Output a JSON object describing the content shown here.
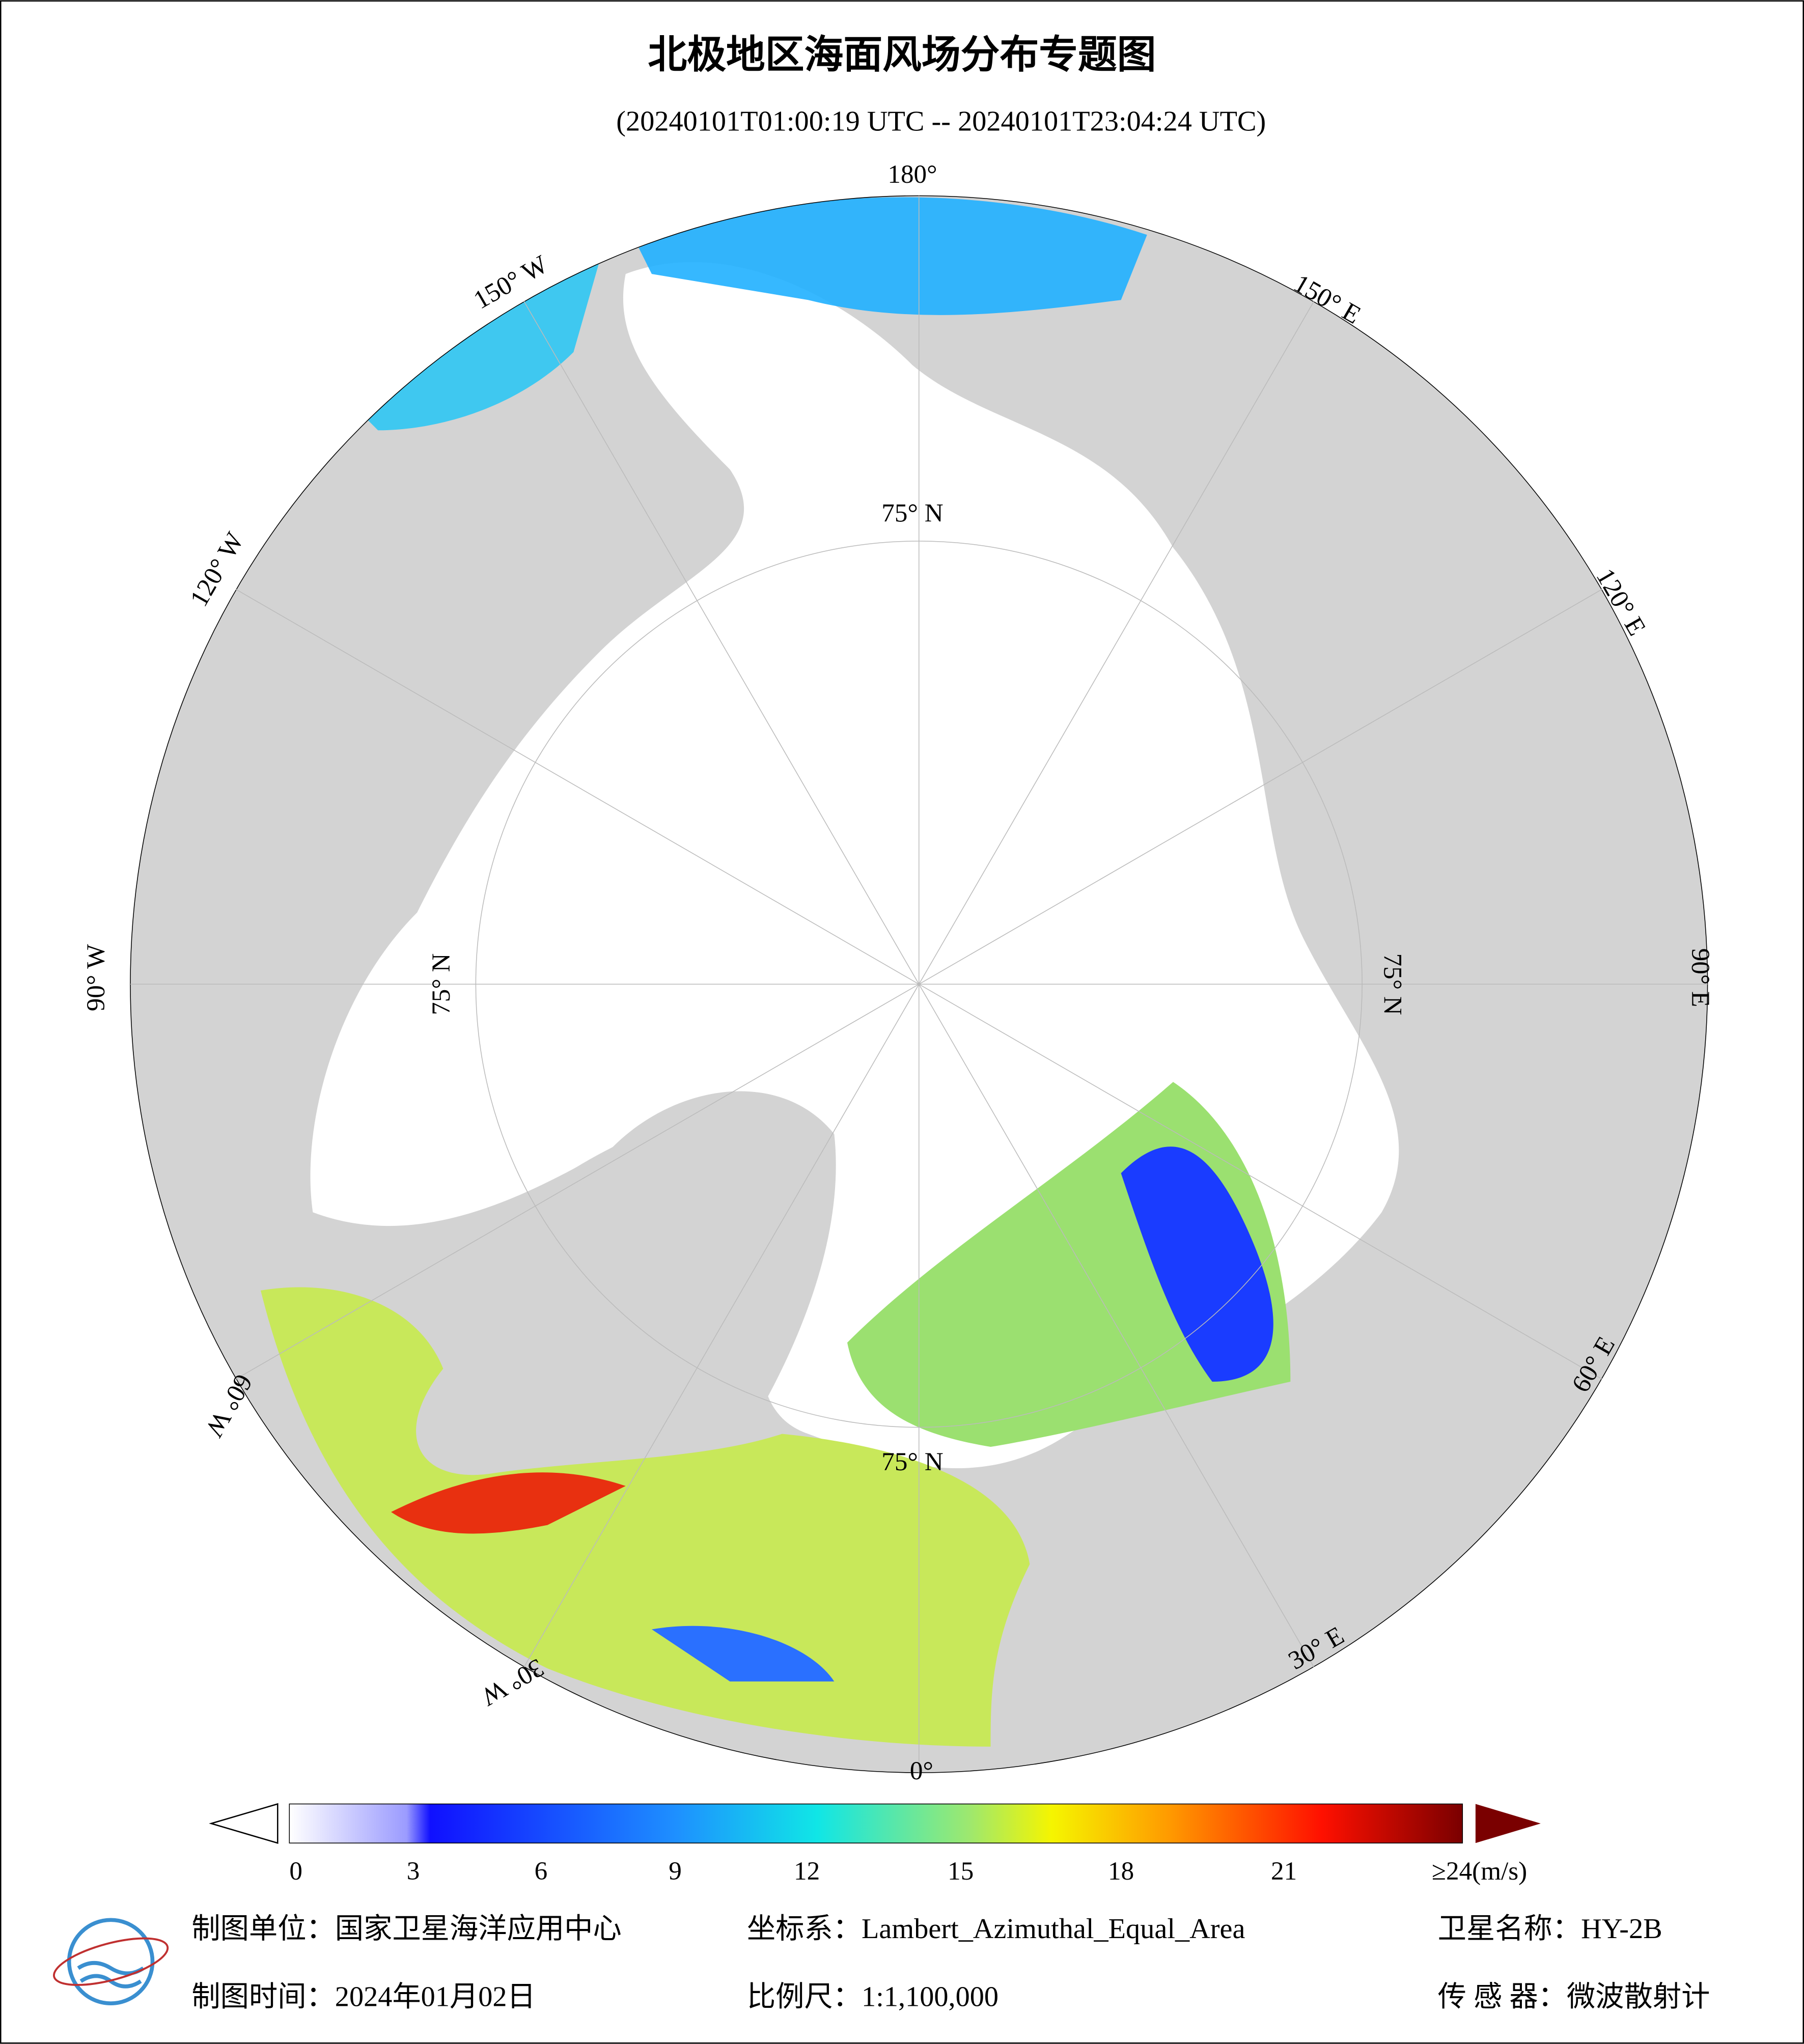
{
  "header": {
    "title": "北极地区海面风场分布专题图",
    "subtitle": "(20240101T01:00:19 UTC -- 20240101T23:04:24 UTC)"
  },
  "map": {
    "longitude_labels": [
      "180°",
      "150° W",
      "120° W",
      "90° W",
      "60° W",
      "30° W",
      "0°",
      "30° E",
      "60° E",
      "90° E",
      "120° E",
      "150° E"
    ],
    "latitude_labels": [
      "75° N",
      "75° N",
      "75° N",
      "75° N"
    ]
  },
  "colorbar": {
    "ticks": [
      0,
      3,
      6,
      9,
      12,
      15,
      18,
      21
    ],
    "last_label": "≥24(m/s)"
  },
  "footer": {
    "unit": "制图单位：国家卫星海洋应用中心",
    "coordinate": "坐标系：Lambert_Azimuthal_Equal_Area",
    "satellite": "卫星名称：HY-2B",
    "date": "制图时间：2024年01月02日",
    "scale": "比例尺：1:1,100,000",
    "sensor": "传 感 器：微波散射计"
  }
}
